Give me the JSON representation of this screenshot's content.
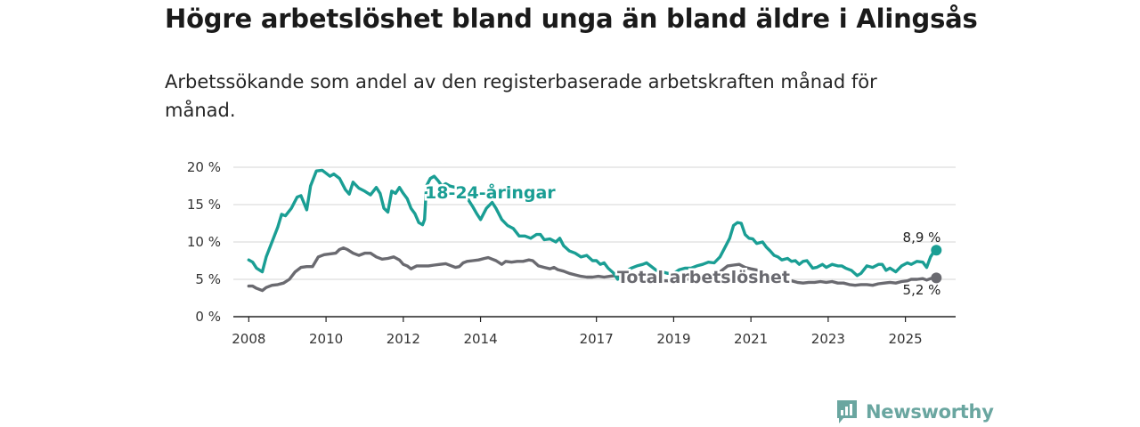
{
  "title": "Högre arbetslöshet bland unga än bland äldre i Alingsås",
  "subtitle": "Arbetssökande som andel av den registerbaserade arbetskraften månad för månad.",
  "brand": {
    "name": "Newsworthy",
    "icon": "newsworthy-logo-icon"
  },
  "colors": {
    "youth": "#1a9e94",
    "total": "#6a6a70",
    "grid": "#dddddd",
    "axis": "#222222"
  },
  "chart_data": {
    "type": "line",
    "title": "Högre arbetslöshet bland unga än bland äldre i Alingsås",
    "xlabel": "",
    "ylabel": "",
    "x_range": [
      2008.0,
      2025.8
    ],
    "ylim": [
      0,
      20
    ],
    "y_ticks": [
      0,
      5,
      10,
      15,
      20
    ],
    "y_tick_labels": [
      "0 %",
      "5 %",
      "10 %",
      "15 %",
      "20 %"
    ],
    "x_ticks": [
      2008,
      2010,
      2012,
      2014,
      2017,
      2019,
      2021,
      2023,
      2025
    ],
    "x_tick_labels": [
      "2008",
      "2010",
      "2012",
      "2014",
      "2017",
      "2019",
      "2021",
      "2023",
      "2025"
    ],
    "series": [
      {
        "name": "18-24-åringar",
        "end_label": "8,9 %",
        "points": [
          [
            2008.0,
            7.6
          ],
          [
            2008.1,
            7.3
          ],
          [
            2008.2,
            6.5
          ],
          [
            2008.35,
            6.0
          ],
          [
            2008.45,
            8.0
          ],
          [
            2008.6,
            10.0
          ],
          [
            2008.75,
            12.0
          ],
          [
            2008.85,
            13.7
          ],
          [
            2008.95,
            13.5
          ],
          [
            2009.1,
            14.5
          ],
          [
            2009.25,
            16.0
          ],
          [
            2009.35,
            16.2
          ],
          [
            2009.5,
            14.3
          ],
          [
            2009.6,
            17.5
          ],
          [
            2009.75,
            19.5
          ],
          [
            2009.9,
            19.6
          ],
          [
            2010.0,
            19.2
          ],
          [
            2010.1,
            18.8
          ],
          [
            2010.2,
            19.1
          ],
          [
            2010.35,
            18.5
          ],
          [
            2010.5,
            17.0
          ],
          [
            2010.6,
            16.4
          ],
          [
            2010.7,
            18.0
          ],
          [
            2010.85,
            17.2
          ],
          [
            2011.0,
            16.8
          ],
          [
            2011.15,
            16.3
          ],
          [
            2011.3,
            17.3
          ],
          [
            2011.4,
            16.5
          ],
          [
            2011.5,
            14.5
          ],
          [
            2011.6,
            14.0
          ],
          [
            2011.7,
            16.8
          ],
          [
            2011.8,
            16.5
          ],
          [
            2011.9,
            17.3
          ],
          [
            2012.0,
            16.5
          ],
          [
            2012.1,
            15.8
          ],
          [
            2012.2,
            14.5
          ],
          [
            2012.3,
            13.8
          ],
          [
            2012.4,
            12.6
          ],
          [
            2012.5,
            12.3
          ],
          [
            2012.55,
            13.0
          ],
          [
            2012.6,
            17.5
          ],
          [
            2012.7,
            18.5
          ],
          [
            2012.8,
            18.8
          ],
          [
            2012.9,
            18.2
          ],
          [
            2013.0,
            17.5
          ],
          [
            2013.1,
            17.8
          ],
          [
            2013.2,
            17.5
          ],
          [
            2013.35,
            17.3
          ],
          [
            2013.5,
            17.0
          ],
          [
            2013.6,
            16.5
          ],
          [
            2013.7,
            15.5
          ],
          [
            2013.8,
            14.7
          ],
          [
            2013.9,
            13.8
          ],
          [
            2014.0,
            13.0
          ],
          [
            2014.15,
            14.5
          ],
          [
            2014.3,
            15.3
          ],
          [
            2014.4,
            14.5
          ],
          [
            2014.55,
            13.0
          ],
          [
            2014.7,
            12.2
          ],
          [
            2014.85,
            11.8
          ],
          [
            2015.0,
            10.8
          ],
          [
            2015.15,
            10.8
          ],
          [
            2015.3,
            10.5
          ],
          [
            2015.45,
            11.0
          ],
          [
            2015.55,
            11.0
          ],
          [
            2015.65,
            10.3
          ],
          [
            2015.8,
            10.4
          ],
          [
            2015.95,
            10.0
          ],
          [
            2016.05,
            10.5
          ],
          [
            2016.15,
            9.5
          ],
          [
            2016.3,
            8.8
          ],
          [
            2016.45,
            8.5
          ],
          [
            2016.6,
            8.0
          ],
          [
            2016.75,
            8.2
          ],
          [
            2016.9,
            7.5
          ],
          [
            2017.0,
            7.5
          ],
          [
            2017.1,
            7.0
          ],
          [
            2017.2,
            7.2
          ],
          [
            2017.3,
            6.5
          ],
          [
            2017.45,
            5.8
          ],
          [
            2017.55,
            5.0
          ],
          [
            2017.65,
            5.5
          ],
          [
            2017.75,
            6.0
          ],
          [
            2017.9,
            6.5
          ],
          [
            2018.05,
            6.8
          ],
          [
            2018.2,
            7.0
          ],
          [
            2018.3,
            7.2
          ],
          [
            2018.4,
            6.8
          ],
          [
            2018.55,
            6.2
          ],
          [
            2018.7,
            6.0
          ],
          [
            2018.85,
            5.8
          ],
          [
            2019.0,
            5.8
          ],
          [
            2019.15,
            6.3
          ],
          [
            2019.3,
            6.5
          ],
          [
            2019.45,
            6.5
          ],
          [
            2019.6,
            6.8
          ],
          [
            2019.75,
            7.0
          ],
          [
            2019.9,
            7.3
          ],
          [
            2020.05,
            7.2
          ],
          [
            2020.2,
            8.0
          ],
          [
            2020.35,
            9.5
          ],
          [
            2020.45,
            10.5
          ],
          [
            2020.55,
            12.2
          ],
          [
            2020.65,
            12.6
          ],
          [
            2020.75,
            12.5
          ],
          [
            2020.85,
            11.0
          ],
          [
            2020.95,
            10.5
          ],
          [
            2021.05,
            10.4
          ],
          [
            2021.15,
            9.8
          ],
          [
            2021.3,
            10.0
          ],
          [
            2021.4,
            9.3
          ],
          [
            2021.5,
            8.8
          ],
          [
            2021.6,
            8.2
          ],
          [
            2021.7,
            8.0
          ],
          [
            2021.8,
            7.6
          ],
          [
            2021.95,
            7.8
          ],
          [
            2022.05,
            7.4
          ],
          [
            2022.15,
            7.5
          ],
          [
            2022.25,
            7.0
          ],
          [
            2022.35,
            7.4
          ],
          [
            2022.45,
            7.5
          ],
          [
            2022.6,
            6.5
          ],
          [
            2022.7,
            6.6
          ],
          [
            2022.85,
            7.0
          ],
          [
            2022.95,
            6.6
          ],
          [
            2023.1,
            7.0
          ],
          [
            2023.25,
            6.8
          ],
          [
            2023.35,
            6.8
          ],
          [
            2023.45,
            6.5
          ],
          [
            2023.6,
            6.2
          ],
          [
            2023.75,
            5.5
          ],
          [
            2023.85,
            5.8
          ],
          [
            2024.0,
            6.8
          ],
          [
            2024.15,
            6.6
          ],
          [
            2024.3,
            7.0
          ],
          [
            2024.4,
            7.0
          ],
          [
            2024.5,
            6.2
          ],
          [
            2024.6,
            6.5
          ],
          [
            2024.75,
            6.0
          ],
          [
            2024.9,
            6.8
          ],
          [
            2025.05,
            7.2
          ],
          [
            2025.15,
            7.0
          ],
          [
            2025.3,
            7.4
          ],
          [
            2025.45,
            7.3
          ],
          [
            2025.55,
            6.6
          ],
          [
            2025.65,
            8.0
          ],
          [
            2025.75,
            8.8
          ],
          [
            2025.8,
            8.9
          ]
        ]
      },
      {
        "name": "Total arbetslöshet",
        "end_label": "5,2 %",
        "points": [
          [
            2008.0,
            4.1
          ],
          [
            2008.1,
            4.1
          ],
          [
            2008.2,
            3.8
          ],
          [
            2008.35,
            3.5
          ],
          [
            2008.45,
            3.9
          ],
          [
            2008.6,
            4.2
          ],
          [
            2008.75,
            4.3
          ],
          [
            2008.9,
            4.5
          ],
          [
            2009.05,
            5.0
          ],
          [
            2009.2,
            6.0
          ],
          [
            2009.35,
            6.6
          ],
          [
            2009.5,
            6.7
          ],
          [
            2009.65,
            6.7
          ],
          [
            2009.8,
            8.0
          ],
          [
            2009.95,
            8.3
          ],
          [
            2010.1,
            8.4
          ],
          [
            2010.25,
            8.5
          ],
          [
            2010.35,
            9.0
          ],
          [
            2010.45,
            9.2
          ],
          [
            2010.55,
            9.0
          ],
          [
            2010.7,
            8.5
          ],
          [
            2010.85,
            8.2
          ],
          [
            2011.0,
            8.5
          ],
          [
            2011.15,
            8.5
          ],
          [
            2011.3,
            8.0
          ],
          [
            2011.45,
            7.7
          ],
          [
            2011.6,
            7.8
          ],
          [
            2011.75,
            8.0
          ],
          [
            2011.9,
            7.6
          ],
          [
            2012.0,
            7.0
          ],
          [
            2012.1,
            6.8
          ],
          [
            2012.2,
            6.4
          ],
          [
            2012.35,
            6.8
          ],
          [
            2012.5,
            6.8
          ],
          [
            2012.65,
            6.8
          ],
          [
            2012.8,
            6.9
          ],
          [
            2012.95,
            7.0
          ],
          [
            2013.1,
            7.1
          ],
          [
            2013.25,
            6.8
          ],
          [
            2013.35,
            6.6
          ],
          [
            2013.45,
            6.7
          ],
          [
            2013.55,
            7.2
          ],
          [
            2013.65,
            7.4
          ],
          [
            2013.8,
            7.5
          ],
          [
            2013.95,
            7.6
          ],
          [
            2014.1,
            7.8
          ],
          [
            2014.2,
            7.9
          ],
          [
            2014.3,
            7.7
          ],
          [
            2014.4,
            7.5
          ],
          [
            2014.55,
            7.0
          ],
          [
            2014.65,
            7.4
          ],
          [
            2014.8,
            7.3
          ],
          [
            2014.95,
            7.4
          ],
          [
            2015.1,
            7.4
          ],
          [
            2015.25,
            7.6
          ],
          [
            2015.35,
            7.5
          ],
          [
            2015.5,
            6.8
          ],
          [
            2015.65,
            6.6
          ],
          [
            2015.8,
            6.4
          ],
          [
            2015.9,
            6.6
          ],
          [
            2016.0,
            6.3
          ],
          [
            2016.15,
            6.1
          ],
          [
            2016.3,
            5.8
          ],
          [
            2016.45,
            5.6
          ],
          [
            2016.6,
            5.4
          ],
          [
            2016.75,
            5.3
          ],
          [
            2016.9,
            5.3
          ],
          [
            2017.05,
            5.4
          ],
          [
            2017.2,
            5.3
          ],
          [
            2017.35,
            5.4
          ],
          [
            2017.5,
            5.5
          ],
          [
            2017.6,
            5.3
          ],
          [
            2017.7,
            4.9
          ],
          [
            2017.85,
            4.8
          ],
          [
            2018.0,
            4.8
          ],
          [
            2018.15,
            4.9
          ],
          [
            2018.3,
            4.8
          ],
          [
            2018.45,
            4.6
          ],
          [
            2018.6,
            4.6
          ],
          [
            2018.75,
            4.8
          ],
          [
            2019.0,
            4.8
          ],
          [
            2019.2,
            4.8
          ],
          [
            2019.35,
            5.0
          ],
          [
            2019.5,
            5.3
          ],
          [
            2019.7,
            5.5
          ],
          [
            2019.85,
            5.6
          ],
          [
            2020.0,
            5.8
          ],
          [
            2020.2,
            6.0
          ],
          [
            2020.4,
            6.8
          ],
          [
            2020.55,
            6.9
          ],
          [
            2020.7,
            7.0
          ],
          [
            2020.85,
            6.6
          ],
          [
            2021.0,
            6.4
          ],
          [
            2021.2,
            6.2
          ],
          [
            2021.4,
            5.8
          ],
          [
            2021.6,
            5.4
          ],
          [
            2021.75,
            5.1
          ],
          [
            2021.9,
            5.0
          ],
          [
            2022.05,
            4.8
          ],
          [
            2022.2,
            4.6
          ],
          [
            2022.35,
            4.5
          ],
          [
            2022.5,
            4.6
          ],
          [
            2022.65,
            4.6
          ],
          [
            2022.8,
            4.7
          ],
          [
            2022.95,
            4.6
          ],
          [
            2023.1,
            4.7
          ],
          [
            2023.25,
            4.5
          ],
          [
            2023.4,
            4.5
          ],
          [
            2023.55,
            4.3
          ],
          [
            2023.7,
            4.2
          ],
          [
            2023.85,
            4.3
          ],
          [
            2024.0,
            4.3
          ],
          [
            2024.15,
            4.2
          ],
          [
            2024.3,
            4.4
          ],
          [
            2024.45,
            4.5
          ],
          [
            2024.6,
            4.6
          ],
          [
            2024.75,
            4.5
          ],
          [
            2024.9,
            4.7
          ],
          [
            2025.05,
            4.8
          ],
          [
            2025.15,
            5.0
          ],
          [
            2025.3,
            5.0
          ],
          [
            2025.45,
            5.1
          ],
          [
            2025.55,
            4.9
          ],
          [
            2025.65,
            5.1
          ],
          [
            2025.75,
            5.2
          ],
          [
            2025.8,
            5.2
          ]
        ]
      }
    ]
  }
}
